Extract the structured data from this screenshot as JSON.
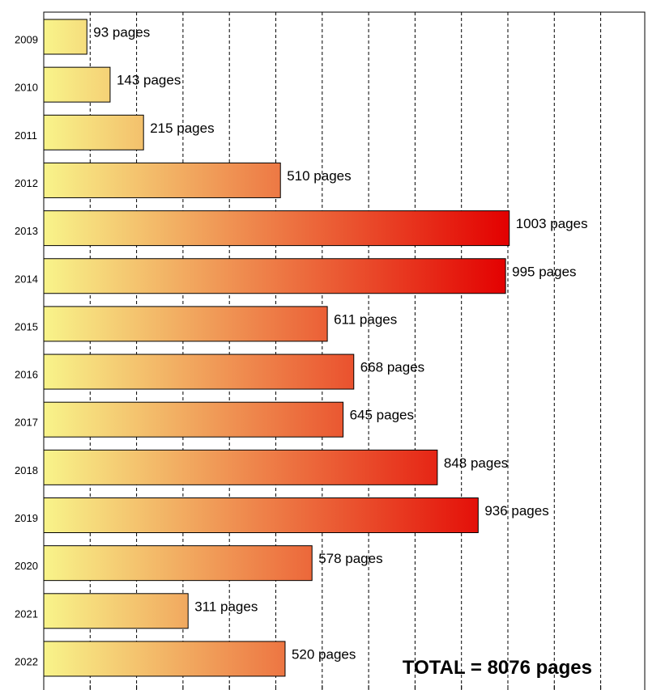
{
  "chart_data": {
    "type": "bar",
    "orientation": "horizontal",
    "title": "",
    "categories": [
      "2009",
      "2010",
      "2011",
      "2012",
      "2013",
      "2014",
      "2015",
      "2016",
      "2017",
      "2018",
      "2019",
      "2020",
      "2021",
      "2022"
    ],
    "values": [
      93,
      143,
      215,
      510,
      1003,
      995,
      611,
      668,
      645,
      848,
      936,
      578,
      311,
      520
    ],
    "value_labels": [
      "93 pages",
      "143 pages",
      "215 pages",
      "510 pages",
      "1003 pages",
      "995 pages",
      "611 pages",
      "668 pages",
      "645 pages",
      "848 pages",
      "936 pages",
      "578 pages",
      "311 pages",
      "520 pages"
    ],
    "xlim": [
      0,
      1300
    ],
    "grid": "vertical dashed",
    "color_low": "#f8f48a",
    "color_high": "#e30000",
    "total_label": "TOTAL = 8076 pages"
  }
}
